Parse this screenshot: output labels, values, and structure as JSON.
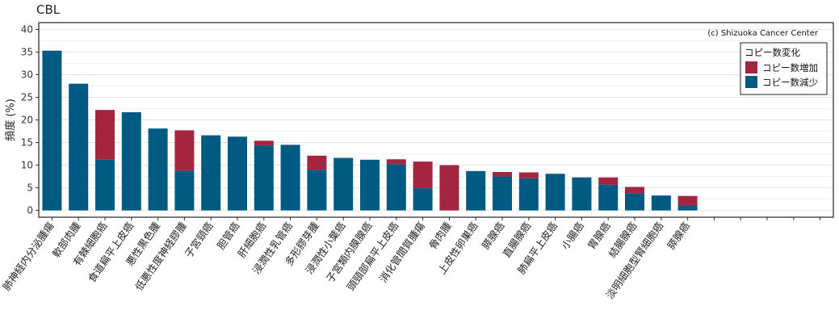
{
  "title": "CBL",
  "chart_data": {
    "type": "bar",
    "stacked": true,
    "categories": [
      "肺神経内分泌腫瘍",
      "軟部肉腫",
      "有棘細胞癌",
      "食道扁平上皮癌",
      "悪性黒色腫",
      "低悪性度神経膠腫",
      "子宮頸癌",
      "胆管癌",
      "肝細胞癌",
      "浸潤性乳管癌",
      "多形膠芽腫",
      "浸潤性小葉癌",
      "子宮類内膜腺癌",
      "頭頸部扁平上皮癌",
      "消化管間質腫瘍",
      "骨肉腫",
      "上皮性卵巣癌",
      "膵腺癌",
      "直腸腺癌",
      "肺扁平上皮癌",
      "小腸癌",
      "胃腺癌",
      "結腸腺癌",
      "淡明細胞型腎細胞癌",
      "膵腺癌"
    ],
    "empty_slots": 5,
    "series": [
      {
        "name": "コピー数減少",
        "color": "#005a82",
        "values": [
          35.3,
          28.0,
          11.2,
          21.7,
          18.1,
          8.8,
          16.6,
          16.3,
          14.4,
          14.5,
          9.0,
          11.6,
          11.2,
          10.2,
          4.9,
          0,
          8.7,
          7.5,
          7.1,
          8.1,
          7.3,
          5.7,
          3.8,
          3.3,
          1.1
        ]
      },
      {
        "name": "コピー数増加",
        "color": "#a3253f",
        "values": [
          0,
          0,
          11.0,
          0,
          0,
          8.9,
          0,
          0,
          1.0,
          0,
          3.1,
          0,
          0,
          1.1,
          5.9,
          10.0,
          0,
          1.0,
          1.3,
          0,
          0,
          1.6,
          1.4,
          0,
          2.1
        ]
      }
    ],
    "ylabel": "頻度 (%)",
    "xlabel": "",
    "ylim": [
      -1.5,
      41.5
    ],
    "yticks": [
      0,
      5,
      10,
      15,
      20,
      25,
      30,
      35,
      40
    ],
    "legend_title": "コピー数変化",
    "legend_entries": [
      "コピー数増加",
      "コピー数減少"
    ],
    "legend_colors": [
      "#a3253f",
      "#005a82"
    ],
    "legend_position": "top-right",
    "annotation": "(c) Shizuoka Cancer Center",
    "grid": true
  }
}
